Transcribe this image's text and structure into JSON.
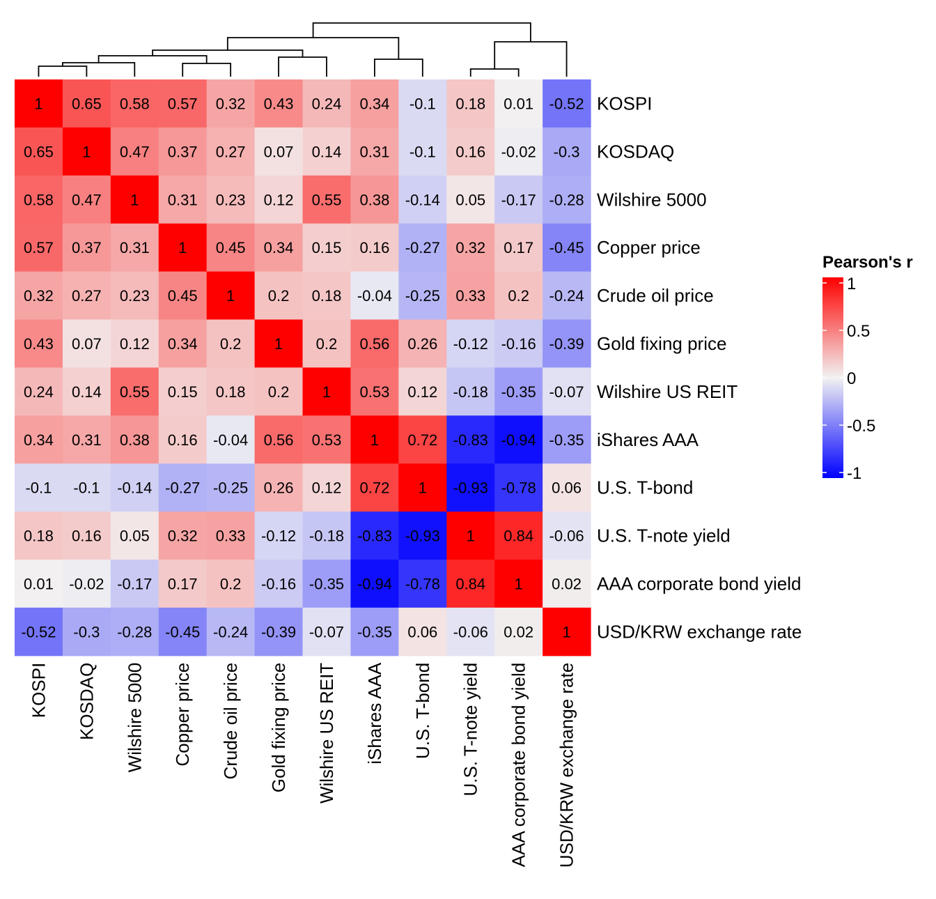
{
  "chart_data": {
    "type": "heatmap",
    "variables": [
      "KOSPI",
      "KOSDAQ",
      "Wilshire 5000",
      "Copper price",
      "Crude oil price",
      "Gold fixing price",
      "Wilshire US REIT",
      "iShares AAA",
      "U.S. T-bond",
      "U.S. T-note yield",
      "AAA corporate bond yield",
      "USD/KRW exchange rate"
    ],
    "matrix": [
      [
        1,
        0.65,
        0.58,
        0.57,
        0.32,
        0.43,
        0.24,
        0.34,
        -0.1,
        0.18,
        0.01,
        -0.52
      ],
      [
        0.65,
        1,
        0.47,
        0.37,
        0.27,
        0.07,
        0.14,
        0.31,
        -0.1,
        0.16,
        -0.02,
        -0.3
      ],
      [
        0.58,
        0.47,
        1,
        0.31,
        0.23,
        0.12,
        0.55,
        0.38,
        -0.14,
        0.05,
        -0.17,
        -0.28
      ],
      [
        0.57,
        0.37,
        0.31,
        1,
        0.45,
        0.34,
        0.15,
        0.16,
        -0.27,
        0.32,
        0.17,
        -0.45
      ],
      [
        0.32,
        0.27,
        0.23,
        0.45,
        1,
        0.2,
        0.18,
        -0.04,
        -0.25,
        0.33,
        0.2,
        -0.24
      ],
      [
        0.43,
        0.07,
        0.12,
        0.34,
        0.2,
        1,
        0.2,
        0.56,
        0.26,
        -0.12,
        -0.16,
        -0.39
      ],
      [
        0.24,
        0.14,
        0.55,
        0.15,
        0.18,
        0.2,
        1,
        0.53,
        0.12,
        -0.18,
        -0.35,
        -0.07
      ],
      [
        0.34,
        0.31,
        0.38,
        0.16,
        -0.04,
        0.56,
        0.53,
        1,
        0.72,
        -0.83,
        -0.94,
        -0.35
      ],
      [
        -0.1,
        -0.1,
        -0.14,
        -0.27,
        -0.25,
        0.26,
        0.12,
        0.72,
        1,
        -0.93,
        -0.78,
        0.06
      ],
      [
        0.18,
        0.16,
        0.05,
        0.32,
        0.33,
        -0.12,
        -0.18,
        -0.83,
        -0.93,
        1,
        0.84,
        -0.06
      ],
      [
        0.01,
        -0.02,
        -0.17,
        0.17,
        0.2,
        -0.16,
        -0.35,
        -0.94,
        -0.78,
        0.84,
        1,
        0.02
      ],
      [
        -0.52,
        -0.3,
        -0.28,
        -0.45,
        -0.24,
        -0.39,
        -0.07,
        -0.35,
        0.06,
        -0.06,
        0.02,
        1
      ]
    ],
    "value_range": [
      -1,
      1
    ],
    "colors": {
      "low": "#0000ff",
      "mid": "#f2f2f2",
      "high": "#ff0000"
    },
    "legend": {
      "title": "Pearson's r",
      "ticks": [
        1,
        0.5,
        0,
        -0.5,
        -1
      ],
      "tick_labels": [
        "1",
        "0.5",
        "0",
        "-0.5",
        "-1"
      ],
      "position": "right"
    },
    "dendrogram": "top",
    "grid": false
  }
}
